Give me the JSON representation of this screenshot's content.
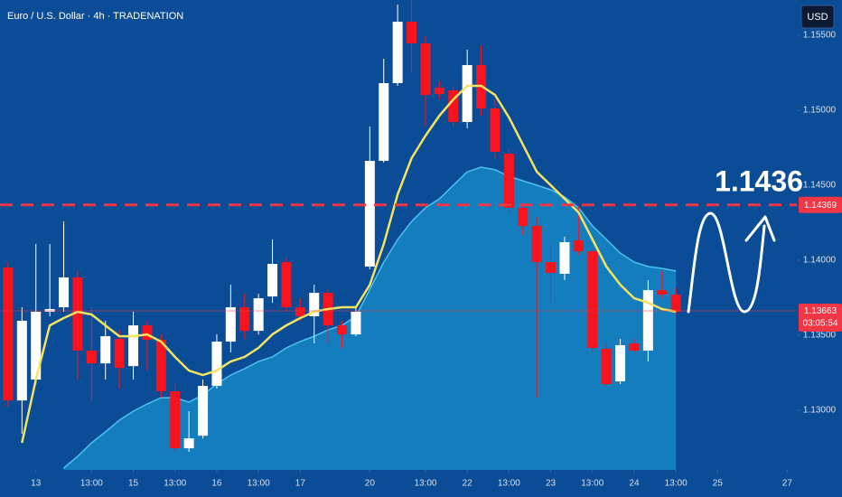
{
  "chart_data": {
    "type": "candlestick",
    "title": "Euro / U.S. Dollar · 4h · TRADENATION",
    "currency": "USD",
    "up_color": "#ffffff",
    "down_color": "#f7141e",
    "open": [
      1.13952,
      1.13066,
      1.13205,
      1.13657,
      1.13687,
      1.13886,
      1.13398,
      1.13313,
      1.13476,
      1.13295,
      1.13566,
      1.1347,
      1.13127,
      1.12747,
      1.12831,
      1.13163,
      1.13458,
      1.13687,
      1.1353,
      1.13759,
      1.13988,
      1.13687,
      1.13627,
      1.13783,
      1.13566,
      1.13506,
      1.13958,
      1.14663,
      1.15181,
      1.1559,
      1.15446,
      1.15151,
      1.15133,
      1.14922,
      1.15301,
      1.15012,
      1.14711,
      1.1435,
      1.14229,
      1.13988,
      1.1391,
      1.14133,
      1.1406,
      1.1341,
      1.13193,
      1.13446,
      1.13398,
      1.13801,
      1.13771
    ],
    "high": [
      1.13988,
      1.13687,
      1.14109,
      1.14109,
      1.14259,
      1.13928,
      1.13687,
      1.13597,
      1.13536,
      1.13657,
      1.13597,
      1.13506,
      1.13175,
      1.12994,
      1.13205,
      1.13506,
      1.13837,
      1.13777,
      1.13777,
      1.14139,
      1.14018,
      1.13747,
      1.13837,
      1.13807,
      1.13597,
      1.13687,
      1.14892,
      1.15343,
      1.15705,
      1.15735,
      1.15494,
      1.15193,
      1.15163,
      1.15404,
      1.15434,
      1.15072,
      1.14741,
      1.1438,
      1.14289,
      1.14109,
      1.14157,
      1.14362,
      1.14078,
      1.13446,
      1.13476,
      1.13476,
      1.13868,
      1.13928,
      1.13819
    ],
    "low": [
      1.13024,
      1.12843,
      1.13175,
      1.13627,
      1.13657,
      1.13205,
      1.13054,
      1.13205,
      1.13145,
      1.13205,
      1.13265,
      1.13084,
      1.12723,
      1.12723,
      1.12813,
      1.13145,
      1.13386,
      1.13476,
      1.13506,
      1.13717,
      1.13657,
      1.13597,
      1.13446,
      1.13446,
      1.13416,
      1.13494,
      1.1394,
      1.14651,
      1.15163,
      1.15253,
      1.14892,
      1.15072,
      1.14892,
      1.1488,
      1.14964,
      1.14681,
      1.14319,
      1.14169,
      1.13084,
      1.13717,
      1.13868,
      1.14036,
      1.13386,
      1.13157,
      1.13175,
      1.13386,
      1.13325,
      1.13747,
      1.13639
    ],
    "close": [
      1.13066,
      1.13597,
      1.13657,
      1.13675,
      1.13886,
      1.13398,
      1.13313,
      1.13494,
      1.13283,
      1.13566,
      1.1347,
      1.13127,
      1.12747,
      1.12813,
      1.13163,
      1.13458,
      1.13687,
      1.1353,
      1.13747,
      1.13976,
      1.13687,
      1.13627,
      1.13783,
      1.13566,
      1.13506,
      1.13657,
      1.14663,
      1.15181,
      1.1559,
      1.15446,
      1.15102,
      1.15108,
      1.14922,
      1.15301,
      1.15012,
      1.14723,
      1.1435,
      1.14229,
      1.13988,
      1.13916,
      1.14121,
      1.1406,
      1.13416,
      1.13175,
      1.13434,
      1.13398,
      1.13801,
      1.13771,
      1.13657
    ],
    "series": [
      {
        "type": "area",
        "color": "#4cc2ee",
        "values": [
          null,
          null,
          null,
          null,
          1.12615,
          1.12693,
          1.12783,
          1.12856,
          1.12934,
          1.12994,
          1.13042,
          1.13084,
          1.13084,
          1.13054,
          1.13103,
          1.13175,
          1.13235,
          1.13277,
          1.13325,
          1.13356,
          1.13416,
          1.13458,
          1.13494,
          1.13536,
          1.13566,
          1.13627,
          1.13807,
          1.13988,
          1.14139,
          1.14259,
          1.1435,
          1.1441,
          1.145,
          1.1459,
          1.14621,
          1.14603,
          1.1456,
          1.1453,
          1.145,
          1.1447,
          1.14422,
          1.1435,
          1.14229,
          1.14139,
          1.14048,
          1.13988,
          1.13958,
          1.13946,
          1.13928
        ]
      },
      {
        "type": "line",
        "color": "#f3e35e",
        "values": [
          null,
          1.12783,
          1.13205,
          1.13566,
          1.13615,
          1.13657,
          1.13639,
          1.13566,
          1.13494,
          1.13494,
          1.13506,
          1.13458,
          1.13356,
          1.13265,
          1.13235,
          1.13265,
          1.13325,
          1.13356,
          1.13416,
          1.13506,
          1.13566,
          1.13615,
          1.13657,
          1.13675,
          1.13687,
          1.13687,
          1.13837,
          1.14109,
          1.1444,
          1.14681,
          1.14831,
          1.14964,
          1.15072,
          1.15163,
          1.15163,
          1.15102,
          1.14952,
          1.14771,
          1.1459,
          1.145,
          1.1441,
          1.14319,
          1.14139,
          1.13958,
          1.13837,
          1.13747,
          1.13717,
          1.13675,
          1.13657
        ]
      }
    ],
    "xlim": [
      -0.58,
      56.69
    ],
    "xticks": [
      {
        "value": 2,
        "label": "13"
      },
      {
        "value": 6,
        "label": "13:00"
      },
      {
        "value": 9,
        "label": "15"
      },
      {
        "value": 12,
        "label": "13:00"
      },
      {
        "value": 15,
        "label": "16"
      },
      {
        "value": 18,
        "label": "13:00"
      },
      {
        "value": 21,
        "label": "17"
      },
      {
        "value": 26,
        "label": "20"
      },
      {
        "value": 30,
        "label": "13:00"
      },
      {
        "value": 33,
        "label": "22"
      },
      {
        "value": 36,
        "label": "13:00"
      },
      {
        "value": 39,
        "label": "23"
      },
      {
        "value": 42,
        "label": "13:00"
      },
      {
        "value": 45,
        "label": "24"
      },
      {
        "value": 48,
        "label": "13:00"
      },
      {
        "value": 51,
        "label": "25"
      },
      {
        "value": 56,
        "label": "27"
      }
    ],
    "ylim": [
      1.12603,
      1.15735
    ],
    "yticks": [
      {
        "value": 1.155,
        "label": "1.15500"
      },
      {
        "value": 1.15,
        "label": "1.15000"
      },
      {
        "value": 1.145,
        "label": "1.14500"
      },
      {
        "value": 1.14,
        "label": "1.14000"
      },
      {
        "value": 1.135,
        "label": "1.13500"
      },
      {
        "value": 1.13,
        "label": "1.13000"
      }
    ],
    "hlines": [
      {
        "value": 1.14369,
        "color": "#f23645"
      }
    ],
    "last_price": {
      "value": 1.13663,
      "countdown": "03:05:54",
      "color": "#f23645"
    },
    "annotation": "1.1436"
  }
}
